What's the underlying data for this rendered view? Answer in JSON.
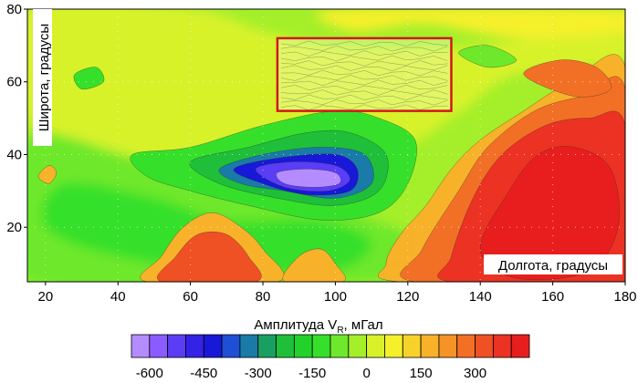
{
  "chart_data": {
    "type": "heatmap",
    "title": "",
    "xlabel": "Долгота, градусы",
    "ylabel": "Широта, градусы",
    "xlim": [
      15,
      180
    ],
    "ylim": [
      5,
      80
    ],
    "x_ticks": [
      "20",
      "40",
      "60",
      "80",
      "100",
      "120",
      "140",
      "160",
      "180"
    ],
    "y_ticks": [
      "20",
      "40",
      "60",
      "80"
    ],
    "grid": true,
    "colorbar": {
      "title": "Амплитуда V",
      "title_sub": "R",
      "title_unit": ", мГал",
      "tick_labels": [
        "-600",
        "-450",
        "-300",
        "-150",
        "0",
        "150",
        "300"
      ],
      "tick_values": [
        -600,
        -450,
        -300,
        -150,
        0,
        150,
        300
      ],
      "range": [
        -650,
        450
      ],
      "step": 50,
      "colors": [
        "#b48cff",
        "#8a5cff",
        "#5b3df5",
        "#3422e6",
        "#1818d8",
        "#1f4fd4",
        "#1a7aa8",
        "#19a060",
        "#1fbf3a",
        "#22d22a",
        "#36e02a",
        "#6ee82a",
        "#a4ef2a",
        "#d8f22a",
        "#f5f02a",
        "#f7d22a",
        "#f7b22a",
        "#f59228",
        "#f27026",
        "#ef5024",
        "#ec3222",
        "#e81e1e"
      ]
    },
    "annotations": [
      {
        "type": "rectangle",
        "label": "",
        "color": "#d0181a",
        "x_range": [
          84,
          132
        ],
        "y_range": [
          52,
          72
        ]
      }
    ]
  }
}
